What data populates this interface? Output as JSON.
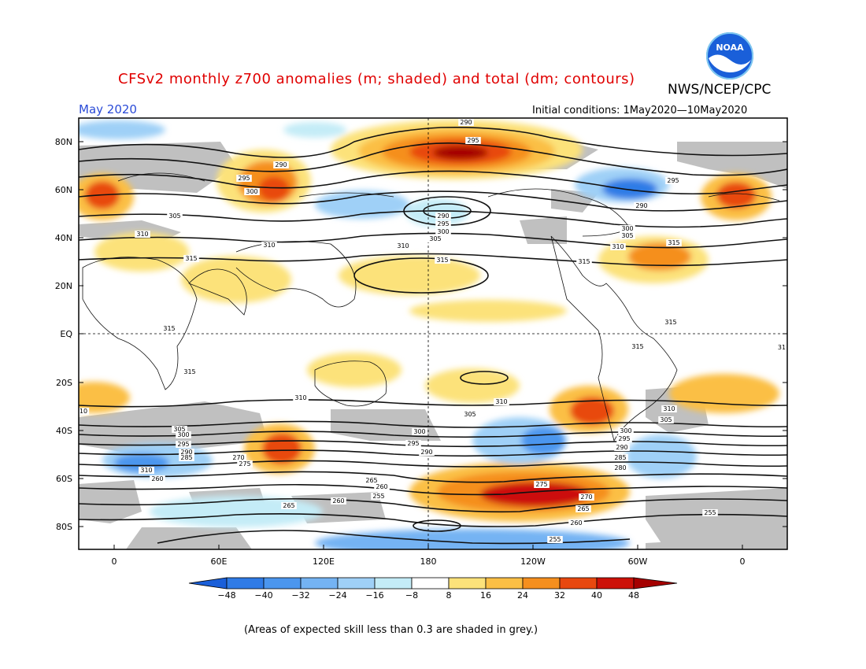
{
  "title": "CFSv2 monthly z700 anomalies (m; shaded) and total (dm; contours)",
  "agency": "NWS/NCEP/CPC",
  "forecast_month": "May 2020",
  "initial_conditions": "Initial conditions: 1May2020—10May2020",
  "footnote": "(Areas of expected skill less than 0.3 are shaded in grey.)",
  "logo_text": "NOAA",
  "lat_labels": [
    "80N",
    "60N",
    "40N",
    "20N",
    "EQ",
    "20S",
    "40S",
    "60S",
    "80S"
  ],
  "lon_labels": [
    "0",
    "60E",
    "120E",
    "180",
    "120W",
    "60W",
    "0"
  ],
  "colorbar": {
    "ticks": [
      "-48",
      "-40",
      "-32",
      "-24",
      "-16",
      "-8",
      "8",
      "16",
      "24",
      "32",
      "40",
      "48"
    ],
    "colors": [
      "#1a5fd9",
      "#2f7be6",
      "#4b96ee",
      "#74b3f3",
      "#9fd0f7",
      "#c4ecf7",
      "#ffffff",
      "#fce27a",
      "#fbbf45",
      "#f58f1e",
      "#e8480f",
      "#cc1108",
      "#a50000"
    ]
  },
  "contour_labels": {
    "north": [
      "290",
      "295",
      "290",
      "295",
      "300",
      "305",
      "310",
      "315",
      "290",
      "295",
      "300",
      "305",
      "310",
      "310",
      "315",
      "315",
      "295",
      "290",
      "300",
      "305",
      "310",
      "315",
      "315",
      "315"
    ],
    "south": [
      "315",
      "315",
      "310",
      "310",
      "305",
      "300",
      "295",
      "290",
      "310",
      "305",
      "300",
      "295",
      "290",
      "285",
      "280",
      "305",
      "300",
      "295",
      "290",
      "285",
      "280",
      "275",
      "270",
      "265",
      "260",
      "265",
      "260",
      "255",
      "260",
      "265",
      "275",
      "270",
      "265",
      "260",
      "255",
      "255",
      "310",
      "10",
      "31"
    ]
  },
  "colors": {
    "title": "#e00000",
    "date": "#2a4bd7",
    "skill_grey": "#c0c0c0"
  }
}
